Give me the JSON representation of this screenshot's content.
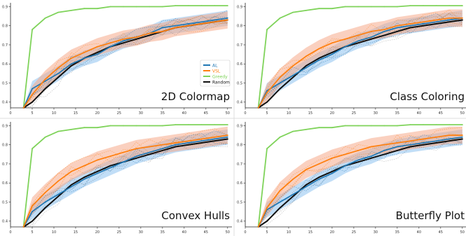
{
  "colors": {
    "al": "#1f77b4",
    "vsl": "#ff7f0e",
    "greedy": "#7fd35a",
    "random": "#111111",
    "al_band": "#8ec3f0",
    "vsl_band": "#f5a98a"
  },
  "legend": {
    "entries": [
      {
        "label": "AL",
        "color": "#1f77b4"
      },
      {
        "label": "VSL",
        "color": "#ff7f0e"
      },
      {
        "label": "Greedy",
        "color": "#7fd35a"
      },
      {
        "label": "Random",
        "color": "#111111"
      }
    ]
  },
  "chart_data": [
    {
      "type": "line",
      "title": "2D Colormap",
      "xlim": [
        0,
        51
      ],
      "ylim": [
        0.37,
        0.92
      ],
      "xticks": [
        0,
        5,
        10,
        15,
        20,
        25,
        30,
        35,
        40,
        45,
        50
      ],
      "yticks": [
        0.4,
        0.5,
        0.6,
        0.7,
        0.8,
        0.9
      ],
      "xticklabels": [
        "0",
        "5",
        "10",
        "15",
        "20",
        "25",
        "30",
        "35",
        "40",
        "45",
        "50"
      ],
      "yticklabels": [
        "0.4",
        "0.5",
        "0.6",
        "0.7",
        "0.8",
        "0.9"
      ],
      "x": [
        3,
        5,
        8,
        11,
        14,
        17,
        20,
        23,
        26,
        29,
        32,
        35,
        38,
        41,
        44,
        47,
        50
      ],
      "series": [
        {
          "name": "AL",
          "values": [
            0.37,
            0.47,
            0.51,
            0.55,
            0.6,
            0.63,
            0.65,
            0.69,
            0.72,
            0.74,
            0.76,
            0.79,
            0.8,
            0.81,
            0.82,
            0.83,
            0.84
          ]
        },
        {
          "name": "VSL",
          "values": [
            0.37,
            0.44,
            0.52,
            0.58,
            0.63,
            0.66,
            0.69,
            0.71,
            0.73,
            0.74,
            0.76,
            0.77,
            0.79,
            0.8,
            0.81,
            0.82,
            0.83
          ]
        },
        {
          "name": "Greedy",
          "values": [
            0.37,
            0.78,
            0.84,
            0.87,
            0.88,
            0.89,
            0.89,
            0.9,
            0.9,
            0.9,
            0.9,
            0.9,
            0.905,
            0.905,
            0.905,
            0.905,
            0.905
          ]
        },
        {
          "name": "Random",
          "values": [
            0.37,
            0.4,
            0.47,
            0.53,
            0.59,
            0.63,
            0.66,
            0.69,
            0.71,
            0.73,
            0.75,
            0.77,
            0.79,
            0.8,
            0.81,
            0.82,
            0.83
          ]
        }
      ]
    },
    {
      "type": "line",
      "title": "Class Coloring",
      "xlim": [
        0,
        51
      ],
      "ylim": [
        0.37,
        0.92
      ],
      "xticks": [
        0,
        5,
        10,
        15,
        20,
        25,
        30,
        35,
        40,
        45,
        50
      ],
      "yticks": [
        0.4,
        0.5,
        0.6,
        0.7,
        0.8,
        0.9
      ],
      "xticklabels": [
        "0",
        "5",
        "10",
        "15",
        "20",
        "25",
        "30",
        "35",
        "40",
        "45",
        "50"
      ],
      "yticklabels": [
        "0.4",
        "0.5",
        "0.6",
        "0.7",
        "0.8",
        "0.9"
      ],
      "x": [
        3,
        5,
        8,
        11,
        14,
        17,
        20,
        23,
        26,
        29,
        32,
        35,
        38,
        41,
        44,
        47,
        50
      ],
      "series": [
        {
          "name": "AL",
          "values": [
            0.37,
            0.46,
            0.5,
            0.54,
            0.58,
            0.62,
            0.65,
            0.69,
            0.72,
            0.74,
            0.77,
            0.79,
            0.8,
            0.81,
            0.82,
            0.83,
            0.84
          ]
        },
        {
          "name": "VSL",
          "values": [
            0.37,
            0.45,
            0.53,
            0.59,
            0.64,
            0.68,
            0.71,
            0.73,
            0.75,
            0.77,
            0.78,
            0.8,
            0.81,
            0.82,
            0.83,
            0.84,
            0.84
          ]
        },
        {
          "name": "Greedy",
          "values": [
            0.37,
            0.78,
            0.84,
            0.87,
            0.88,
            0.89,
            0.89,
            0.9,
            0.9,
            0.9,
            0.9,
            0.9,
            0.905,
            0.905,
            0.905,
            0.905,
            0.905
          ]
        },
        {
          "name": "Random",
          "values": [
            0.37,
            0.4,
            0.47,
            0.53,
            0.59,
            0.63,
            0.66,
            0.69,
            0.71,
            0.73,
            0.75,
            0.77,
            0.79,
            0.8,
            0.81,
            0.82,
            0.83
          ]
        }
      ]
    },
    {
      "type": "line",
      "title": "Convex Hulls",
      "xlim": [
        0,
        51
      ],
      "ylim": [
        0.37,
        0.92
      ],
      "xticks": [
        0,
        5,
        10,
        15,
        20,
        25,
        30,
        35,
        40,
        45,
        50
      ],
      "yticks": [
        0.4,
        0.5,
        0.6,
        0.7,
        0.8,
        0.9
      ],
      "xticklabels": [
        "0",
        "5",
        "10",
        "15",
        "20",
        "25",
        "30",
        "35",
        "40",
        "45",
        "50"
      ],
      "yticklabels": [
        "0.4",
        "0.5",
        "0.6",
        "0.7",
        "0.8",
        "0.9"
      ],
      "x": [
        3,
        5,
        8,
        11,
        14,
        17,
        20,
        23,
        26,
        29,
        32,
        35,
        38,
        41,
        44,
        47,
        50
      ],
      "series": [
        {
          "name": "AL",
          "values": [
            0.37,
            0.45,
            0.5,
            0.54,
            0.58,
            0.62,
            0.65,
            0.68,
            0.71,
            0.74,
            0.76,
            0.78,
            0.8,
            0.81,
            0.82,
            0.83,
            0.84
          ]
        },
        {
          "name": "VSL",
          "values": [
            0.37,
            0.48,
            0.55,
            0.61,
            0.66,
            0.69,
            0.72,
            0.74,
            0.76,
            0.78,
            0.79,
            0.8,
            0.81,
            0.82,
            0.83,
            0.84,
            0.85
          ]
        },
        {
          "name": "Greedy",
          "values": [
            0.37,
            0.78,
            0.84,
            0.87,
            0.88,
            0.89,
            0.89,
            0.9,
            0.9,
            0.9,
            0.9,
            0.9,
            0.905,
            0.905,
            0.905,
            0.905,
            0.905
          ]
        },
        {
          "name": "Random",
          "values": [
            0.37,
            0.4,
            0.47,
            0.53,
            0.59,
            0.63,
            0.66,
            0.69,
            0.71,
            0.73,
            0.75,
            0.77,
            0.79,
            0.8,
            0.81,
            0.82,
            0.83
          ]
        }
      ]
    },
    {
      "type": "line",
      "title": "Butterfly Plot",
      "xlim": [
        0,
        51
      ],
      "ylim": [
        0.37,
        0.92
      ],
      "xticks": [
        0,
        5,
        10,
        15,
        20,
        25,
        30,
        35,
        40,
        45,
        50
      ],
      "yticks": [
        0.4,
        0.5,
        0.6,
        0.7,
        0.8,
        0.9
      ],
      "xticklabels": [
        "0",
        "5",
        "10",
        "15",
        "20",
        "25",
        "30",
        "35",
        "40",
        "45",
        "50"
      ],
      "yticklabels": [
        "0.4",
        "0.5",
        "0.6",
        "0.7",
        "0.8",
        "0.9"
      ],
      "x": [
        3,
        5,
        8,
        11,
        14,
        17,
        20,
        23,
        26,
        29,
        32,
        35,
        38,
        41,
        44,
        47,
        50
      ],
      "series": [
        {
          "name": "AL",
          "values": [
            0.37,
            0.46,
            0.5,
            0.54,
            0.58,
            0.62,
            0.65,
            0.69,
            0.72,
            0.74,
            0.77,
            0.79,
            0.8,
            0.81,
            0.82,
            0.83,
            0.84
          ]
        },
        {
          "name": "VSL",
          "values": [
            0.37,
            0.47,
            0.56,
            0.62,
            0.67,
            0.7,
            0.73,
            0.75,
            0.77,
            0.79,
            0.8,
            0.81,
            0.82,
            0.83,
            0.84,
            0.85,
            0.85
          ]
        },
        {
          "name": "Greedy",
          "values": [
            0.37,
            0.78,
            0.84,
            0.87,
            0.88,
            0.89,
            0.89,
            0.9,
            0.9,
            0.9,
            0.9,
            0.9,
            0.905,
            0.905,
            0.905,
            0.905,
            0.905
          ]
        },
        {
          "name": "Random",
          "values": [
            0.37,
            0.4,
            0.47,
            0.53,
            0.59,
            0.63,
            0.66,
            0.69,
            0.71,
            0.73,
            0.75,
            0.77,
            0.79,
            0.8,
            0.81,
            0.82,
            0.83
          ]
        }
      ]
    }
  ]
}
